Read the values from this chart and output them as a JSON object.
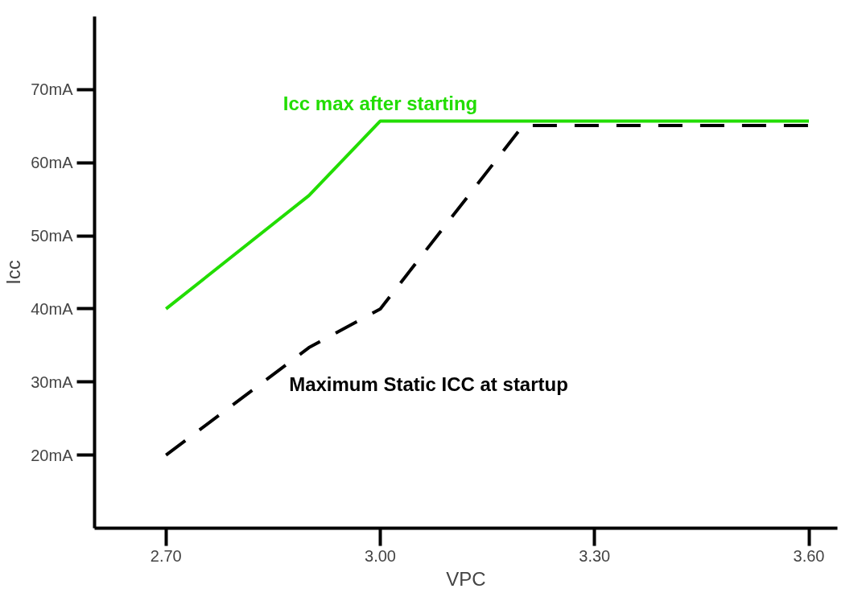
{
  "chart_data": {
    "type": "line",
    "xlabel": "VPC",
    "ylabel": "Icc",
    "xlim": [
      2.6,
      3.64
    ],
    "ylim": [
      10,
      80
    ],
    "xticks": [
      {
        "value": 2.7,
        "label": "2.70"
      },
      {
        "value": 3.0,
        "label": "3.00"
      },
      {
        "value": 3.3,
        "label": "3.30"
      },
      {
        "value": 3.6,
        "label": "3.60"
      }
    ],
    "yticks": [
      {
        "value": 20,
        "label": "20mA"
      },
      {
        "value": 30,
        "label": "30mA"
      },
      {
        "value": 40,
        "label": "40mA"
      },
      {
        "value": 50,
        "label": "50mA"
      },
      {
        "value": 60,
        "label": "60mA"
      },
      {
        "value": 70,
        "label": "70mA"
      }
    ],
    "series": [
      {
        "name": "Icc max after starting",
        "color": "#22dd00",
        "line_style": "solid",
        "x": [
          2.7,
          2.9,
          3.0,
          3.6
        ],
        "values": [
          40,
          55.5,
          65.7,
          65.7
        ]
      },
      {
        "name": "Maximum Static ICC at startup",
        "color": "#000000",
        "line_style": "dashed",
        "x": [
          2.7,
          2.9,
          3.0,
          3.2,
          3.6
        ],
        "values": [
          20,
          34.7,
          40,
          65.1,
          65.1
        ]
      }
    ]
  }
}
